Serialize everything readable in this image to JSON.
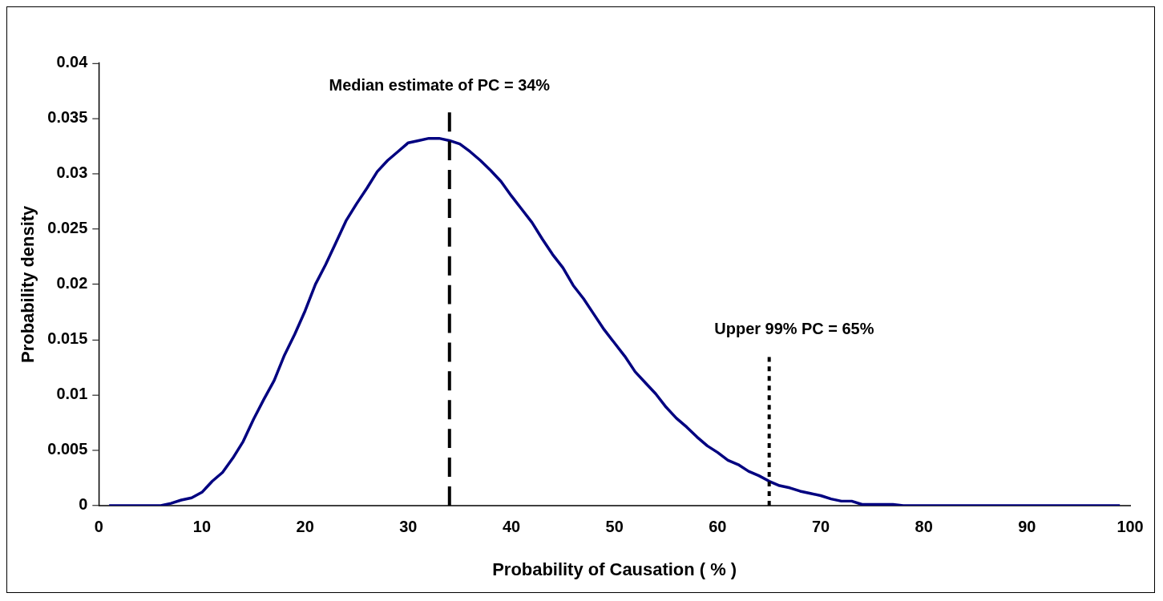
{
  "chart_data": {
    "type": "line",
    "xlabel": "Probability of Causation ( % )",
    "ylabel": "Probability density",
    "x": [
      1,
      2,
      3,
      4,
      5,
      6,
      7,
      8,
      9,
      10,
      11,
      12,
      13,
      14,
      15,
      16,
      17,
      18,
      19,
      20,
      21,
      22,
      23,
      24,
      25,
      26,
      27,
      28,
      29,
      30,
      31,
      32,
      33,
      34,
      35,
      36,
      37,
      38,
      39,
      40,
      41,
      42,
      43,
      44,
      45,
      46,
      47,
      48,
      49,
      50,
      51,
      52,
      53,
      54,
      55,
      56,
      57,
      58,
      59,
      60,
      61,
      62,
      63,
      64,
      65,
      66,
      67,
      68,
      69,
      70,
      71,
      72,
      73,
      74,
      75,
      76,
      77,
      78,
      79,
      80,
      81,
      82,
      83,
      84,
      85,
      86,
      87,
      88,
      89,
      90,
      91,
      92,
      93,
      94,
      95,
      96,
      97,
      98,
      99
    ],
    "series": [
      {
        "color": "#000080",
        "values": [
          0,
          0,
          0,
          0,
          0,
          0,
          0.0002,
          0.0005,
          0.0007,
          0.0012,
          0.0022,
          0.003,
          0.0043,
          0.0058,
          0.0078,
          0.0096,
          0.0113,
          0.0136,
          0.0155,
          0.0176,
          0.02,
          0.0218,
          0.0238,
          0.0258,
          0.0273,
          0.0287,
          0.0302,
          0.0312,
          0.032,
          0.0328,
          0.033,
          0.0332,
          0.0332,
          0.033,
          0.0327,
          0.032,
          0.0312,
          0.0303,
          0.0293,
          0.028,
          0.0268,
          0.0256,
          0.0241,
          0.0227,
          0.0215,
          0.0199,
          0.0187,
          0.0173,
          0.0159,
          0.0147,
          0.0135,
          0.0121,
          0.0111,
          0.0101,
          0.0089,
          0.0079,
          0.0071,
          0.0062,
          0.0054,
          0.0048,
          0.0041,
          0.0037,
          0.0031,
          0.0027,
          0.0022,
          0.0018,
          0.0016,
          0.0013,
          0.0011,
          0.0009,
          0.0006,
          0.0004,
          0.0004,
          0.0001,
          0.0001,
          0.0001,
          0.0001,
          0,
          0,
          0,
          0,
          0,
          0,
          0,
          0,
          0,
          0,
          0,
          0,
          0,
          0,
          0,
          0,
          0,
          0,
          0,
          0,
          0,
          0
        ]
      }
    ],
    "xlim": [
      0,
      100
    ],
    "xticks": [
      0,
      10,
      20,
      30,
      40,
      50,
      60,
      70,
      80,
      90,
      100
    ],
    "ylim": [
      0,
      0.04
    ],
    "yticks": [
      0,
      0.005,
      0.01,
      0.015,
      0.02,
      0.025,
      0.03,
      0.035,
      0.04
    ],
    "grid": false,
    "legend": false,
    "marker": "none",
    "line_style": "solid",
    "ref_lines": [
      {
        "axis": "x",
        "value": 34,
        "color": "#000000",
        "line_style": "dashed",
        "label": "Median estimate of PC = 34%"
      },
      {
        "axis": "x",
        "value": 65,
        "color": "#000000",
        "line_style": "dotted",
        "label": "Upper 99% PC = 65%"
      }
    ]
  }
}
